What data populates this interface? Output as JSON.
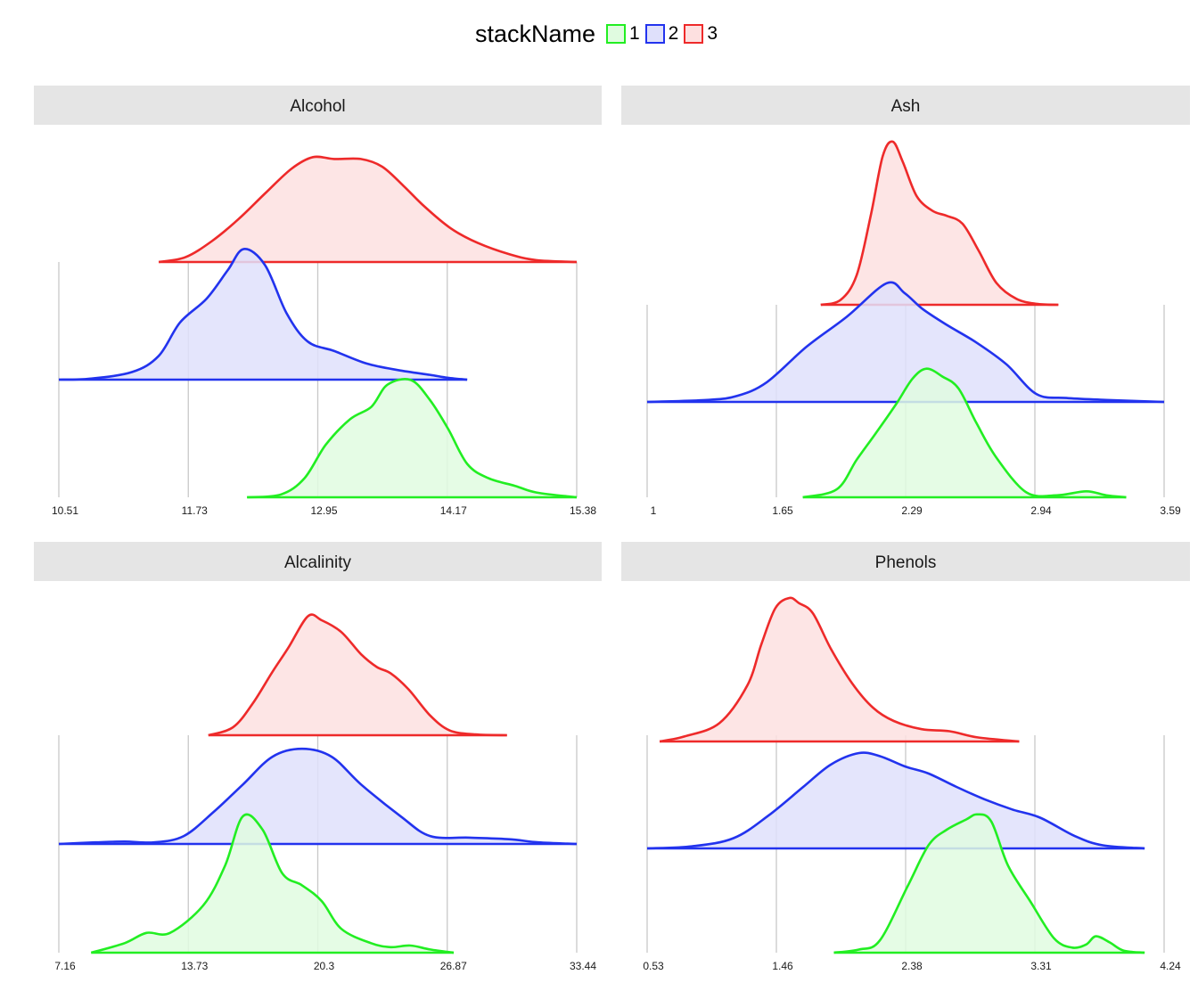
{
  "legend": {
    "title": "stackName",
    "items": [
      {
        "label": "1",
        "color": "#22ee22",
        "fill": "#e0fbe0"
      },
      {
        "label": "2",
        "color": "#2233ee",
        "fill": "#dfe0fb"
      },
      {
        "label": "3",
        "color": "#ee2a2a",
        "fill": "#fde0e0"
      }
    ]
  },
  "chart_data": [
    {
      "type": "area",
      "title": "Alcohol",
      "xticks": [
        "10.51",
        "11.73",
        "12.95",
        "14.17",
        "15.38"
      ],
      "xlim": [
        10.51,
        15.38
      ],
      "series": [
        {
          "name": "1",
          "x": [
            12.28,
            12.6,
            12.82,
            13.02,
            13.25,
            13.45,
            13.6,
            13.82,
            14.0,
            14.17,
            14.35,
            14.55,
            14.8,
            15.0,
            15.38
          ],
          "y": [
            0,
            0.03,
            0.2,
            0.55,
            0.82,
            0.95,
            1.18,
            1.23,
            1.02,
            0.72,
            0.35,
            0.2,
            0.12,
            0.05,
            0
          ]
        },
        {
          "name": "2",
          "x": [
            10.51,
            10.8,
            11.2,
            11.45,
            11.65,
            11.9,
            12.1,
            12.25,
            12.45,
            12.65,
            12.85,
            13.1,
            13.4,
            13.7,
            14.0,
            14.17,
            14.35
          ],
          "y": [
            0,
            0.01,
            0.08,
            0.25,
            0.6,
            0.85,
            1.15,
            1.37,
            1.2,
            0.7,
            0.4,
            0.3,
            0.17,
            0.1,
            0.05,
            0.02,
            0
          ]
        },
        {
          "name": "3",
          "x": [
            11.45,
            11.7,
            11.95,
            12.2,
            12.45,
            12.7,
            12.9,
            13.1,
            13.35,
            13.55,
            13.75,
            13.95,
            14.2,
            14.45,
            14.75,
            15.0,
            15.38
          ],
          "y": [
            0,
            0.05,
            0.22,
            0.45,
            0.72,
            0.98,
            1.1,
            1.08,
            1.08,
            1.0,
            0.8,
            0.58,
            0.35,
            0.2,
            0.08,
            0.02,
            0
          ]
        }
      ]
    },
    {
      "type": "area",
      "title": "Ash",
      "xticks": [
        "1",
        "1.65",
        "2.29",
        "2.94",
        "3.59"
      ],
      "xlim": [
        1.0,
        3.59
      ],
      "series": [
        {
          "name": "1",
          "x": [
            1.78,
            1.95,
            2.05,
            2.15,
            2.25,
            2.33,
            2.4,
            2.48,
            2.56,
            2.65,
            2.75,
            2.9,
            3.05,
            3.2,
            3.3,
            3.4
          ],
          "y": [
            0,
            0.08,
            0.38,
            0.66,
            0.95,
            1.2,
            1.3,
            1.22,
            1.1,
            0.75,
            0.4,
            0.05,
            0.02,
            0.06,
            0.02,
            0
          ]
        },
        {
          "name": "2",
          "x": [
            1.0,
            1.3,
            1.45,
            1.6,
            1.8,
            2.0,
            2.2,
            2.29,
            2.38,
            2.5,
            2.65,
            2.8,
            2.95,
            3.1,
            3.3,
            3.59
          ],
          "y": [
            0,
            0.02,
            0.06,
            0.2,
            0.56,
            0.86,
            1.2,
            1.1,
            0.94,
            0.78,
            0.6,
            0.38,
            0.08,
            0.04,
            0.02,
            0
          ]
        },
        {
          "name": "3",
          "x": [
            1.87,
            1.97,
            2.05,
            2.12,
            2.18,
            2.23,
            2.28,
            2.35,
            2.43,
            2.5,
            2.58,
            2.66,
            2.75,
            2.85,
            2.95,
            3.06
          ],
          "y": [
            0,
            0.05,
            0.3,
            0.9,
            1.5,
            1.65,
            1.45,
            1.1,
            0.95,
            0.9,
            0.82,
            0.55,
            0.22,
            0.06,
            0.01,
            0
          ]
        }
      ]
    },
    {
      "type": "area",
      "title": "Alcalinity",
      "xticks": [
        "7.16",
        "13.73",
        "20.3",
        "26.87",
        "33.44"
      ],
      "xlim": [
        7.16,
        33.44
      ],
      "series": [
        {
          "name": "1",
          "x": [
            8.8,
            10.5,
            11.6,
            12.8,
            14.5,
            15.6,
            16.5,
            17.5,
            18.5,
            19.5,
            20.5,
            21.5,
            23.0,
            24.0,
            25.0,
            26.0,
            27.2
          ],
          "y": [
            0,
            0.12,
            0.25,
            0.25,
            0.6,
            1.1,
            1.72,
            1.55,
            1.0,
            0.85,
            0.65,
            0.3,
            0.12,
            0.07,
            0.09,
            0.04,
            0
          ]
        },
        {
          "name": "2",
          "x": [
            7.16,
            9.0,
            10.5,
            12.0,
            13.5,
            15.0,
            16.5,
            18.0,
            19.5,
            21.0,
            22.5,
            24.5,
            26.0,
            28.0,
            30.0,
            31.5,
            33.44
          ],
          "y": [
            0,
            0.02,
            0.03,
            0.02,
            0.1,
            0.4,
            0.75,
            1.1,
            1.2,
            1.1,
            0.75,
            0.35,
            0.1,
            0.08,
            0.06,
            0.02,
            0
          ]
        },
        {
          "name": "3",
          "x": [
            14.75,
            16.0,
            17.0,
            18.0,
            18.8,
            19.8,
            20.5,
            21.5,
            22.5,
            23.3,
            24.0,
            24.9,
            26.0,
            27.0,
            28.3,
            29.9
          ],
          "y": [
            0,
            0.1,
            0.4,
            0.8,
            1.1,
            1.5,
            1.45,
            1.3,
            1.02,
            0.86,
            0.78,
            0.58,
            0.25,
            0.06,
            0.01,
            0
          ]
        }
      ]
    },
    {
      "type": "area",
      "title": "Phenols",
      "xticks": [
        "0.53",
        "1.46",
        "2.38",
        "3.31",
        "4.24"
      ],
      "xlim": [
        0.53,
        4.24
      ],
      "series": [
        {
          "name": "1",
          "x": [
            1.87,
            2.05,
            2.2,
            2.4,
            2.55,
            2.68,
            2.82,
            2.9,
            3.0,
            3.12,
            3.28,
            3.45,
            3.58,
            3.68,
            3.75,
            3.85,
            3.95,
            4.1
          ],
          "y": [
            0,
            0.03,
            0.12,
            0.65,
            1.05,
            1.2,
            1.3,
            1.35,
            1.28,
            0.85,
            0.5,
            0.14,
            0.05,
            0.08,
            0.16,
            0.1,
            0.02,
            0
          ]
        },
        {
          "name": "2",
          "x": [
            0.53,
            0.85,
            1.15,
            1.4,
            1.65,
            1.85,
            2.05,
            2.2,
            2.38,
            2.55,
            2.75,
            2.95,
            3.15,
            3.35,
            3.6,
            3.8,
            4.1
          ],
          "y": [
            0,
            0.02,
            0.1,
            0.32,
            0.6,
            0.82,
            0.93,
            0.9,
            0.8,
            0.73,
            0.6,
            0.48,
            0.38,
            0.3,
            0.12,
            0.03,
            0
          ]
        },
        {
          "name": "3",
          "x": [
            0.62,
            0.8,
            1.05,
            1.25,
            1.35,
            1.45,
            1.55,
            1.62,
            1.72,
            1.85,
            2.0,
            2.15,
            2.3,
            2.5,
            2.7,
            2.9,
            3.2
          ],
          "y": [
            0,
            0.05,
            0.18,
            0.55,
            0.95,
            1.3,
            1.4,
            1.35,
            1.25,
            0.9,
            0.57,
            0.33,
            0.2,
            0.12,
            0.1,
            0.04,
            0
          ]
        }
      ]
    }
  ]
}
